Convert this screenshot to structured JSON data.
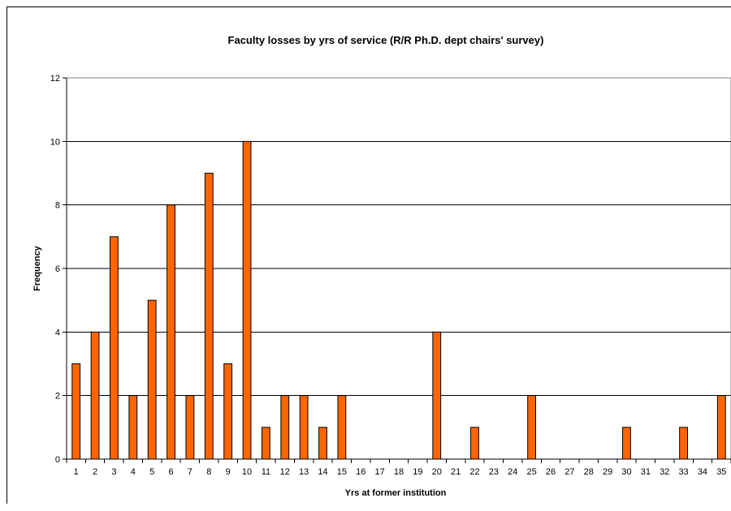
{
  "chart_data": {
    "type": "bar",
    "title": "Faculty losses by yrs of service (R/R Ph.D. dept chairs' survey)",
    "xlabel": "Yrs at former institution",
    "ylabel": "Frequency",
    "categories": [
      "1",
      "2",
      "3",
      "4",
      "5",
      "6",
      "7",
      "8",
      "9",
      "10",
      "11",
      "12",
      "13",
      "14",
      "15",
      "16",
      "17",
      "18",
      "19",
      "20",
      "21",
      "22",
      "23",
      "24",
      "25",
      "26",
      "27",
      "28",
      "29",
      "30",
      "31",
      "32",
      "33",
      "34",
      "35"
    ],
    "values": [
      3,
      4,
      7,
      2,
      5,
      8,
      2,
      9,
      3,
      10,
      1,
      2,
      2,
      1,
      2,
      0,
      0,
      0,
      0,
      4,
      0,
      1,
      0,
      0,
      2,
      0,
      0,
      0,
      0,
      1,
      0,
      0,
      1,
      0,
      2
    ],
    "ylim": [
      0,
      12
    ],
    "yticks": [
      0,
      2,
      4,
      6,
      8,
      10,
      12
    ],
    "grid": true,
    "legend": "none",
    "colors": {
      "bar_fill": "#FF6600",
      "bar_stroke": "#000000",
      "grid": "#000000",
      "plot_bg": "#FFFFFF"
    }
  }
}
